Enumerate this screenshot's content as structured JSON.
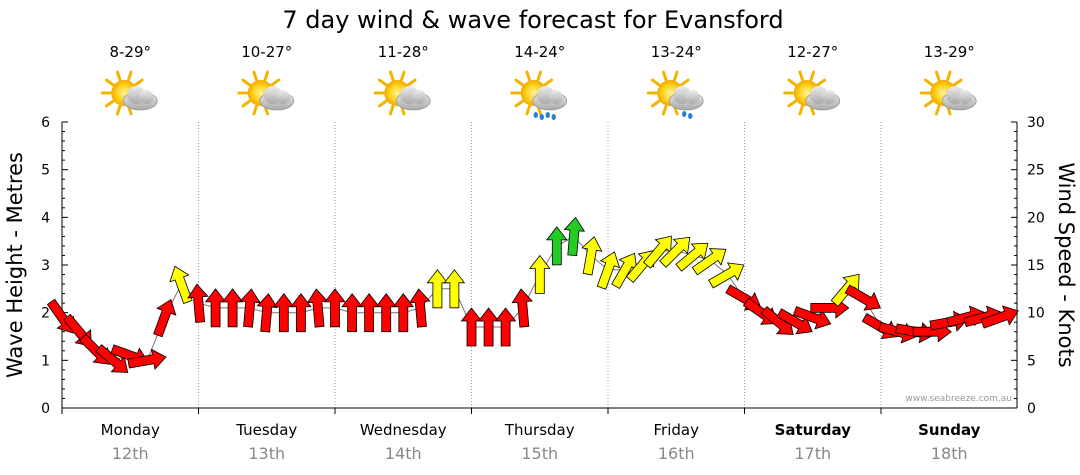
{
  "chart_data": {
    "type": "line",
    "title": "7 day wind & wave forecast for Evansford",
    "ylabel_left": "Wave Height - Metres",
    "ylabel_right": "Wind Speed - Knots",
    "ylim_left": [
      0,
      6
    ],
    "ylim_right": [
      0,
      30
    ],
    "yticks_left": [
      "0",
      "1",
      "2",
      "3",
      "4",
      "5",
      "6"
    ],
    "yticks_right": [
      "0",
      "5",
      "10",
      "15",
      "20",
      "25",
      "30"
    ],
    "credit": "www.seabreeze.com.au",
    "days": [
      {
        "name": "Monday",
        "date": "12th",
        "bold": false,
        "temp": "8-29°",
        "icon": "partly-cloudy-icon"
      },
      {
        "name": "Tuesday",
        "date": "13th",
        "bold": false,
        "temp": "10-27°",
        "icon": "partly-cloudy-icon"
      },
      {
        "name": "Wednesday",
        "date": "14th",
        "bold": false,
        "temp": "11-28°",
        "icon": "partly-cloudy-icon"
      },
      {
        "name": "Thursday",
        "date": "15th",
        "bold": false,
        "temp": "14-24°",
        "icon": "showers-icon"
      },
      {
        "name": "Friday",
        "date": "16th",
        "bold": false,
        "temp": "13-24°",
        "icon": "light-showers-icon"
      },
      {
        "name": "Saturday",
        "date": "17th",
        "bold": true,
        "temp": "12-27°",
        "icon": "partly-cloudy-icon"
      },
      {
        "name": "Sunday",
        "date": "18th",
        "bold": true,
        "temp": "13-29°",
        "icon": "partly-cloudy-icon"
      }
    ],
    "wind_series": {
      "name": "Wind speed (knots) with direction",
      "x_hours": [
        0,
        3,
        6,
        9,
        12,
        15,
        18,
        21,
        24,
        27,
        30,
        33,
        36,
        39,
        42,
        45,
        48,
        51,
        54,
        57,
        60,
        63,
        66,
        69,
        72,
        75,
        78,
        81,
        84,
        87,
        90,
        93,
        96,
        99,
        102,
        105,
        108,
        111,
        114,
        117,
        120,
        123,
        126,
        129,
        132,
        135,
        138,
        141,
        144,
        147,
        150,
        153,
        156,
        159,
        162,
        165
      ],
      "speed_knots": [
        9.5,
        8,
        6,
        5,
        5.5,
        5,
        9.5,
        13,
        11,
        10.5,
        10.5,
        10.5,
        10,
        10,
        10,
        10.5,
        10.5,
        10,
        10,
        10,
        10,
        10.5,
        12.5,
        12.5,
        8.5,
        8.5,
        8.5,
        10.5,
        14,
        17,
        18,
        16,
        14.5,
        14.5,
        15,
        16.5,
        16.5,
        16,
        15.5,
        14,
        11.5,
        10,
        9,
        9,
        9.5,
        10.5,
        12.5,
        11.5,
        8.5,
        8,
        8,
        8,
        9,
        9.5,
        9.5,
        9.5
      ],
      "direction_deg": [
        325,
        320,
        315,
        310,
        290,
        260,
        200,
        160,
        175,
        180,
        180,
        185,
        185,
        180,
        180,
        175,
        180,
        180,
        180,
        180,
        180,
        175,
        180,
        180,
        180,
        180,
        180,
        175,
        180,
        180,
        185,
        190,
        200,
        210,
        220,
        220,
        225,
        230,
        235,
        240,
        300,
        305,
        310,
        300,
        290,
        270,
        220,
        300,
        300,
        285,
        280,
        270,
        260,
        255,
        255,
        250
      ]
    }
  }
}
